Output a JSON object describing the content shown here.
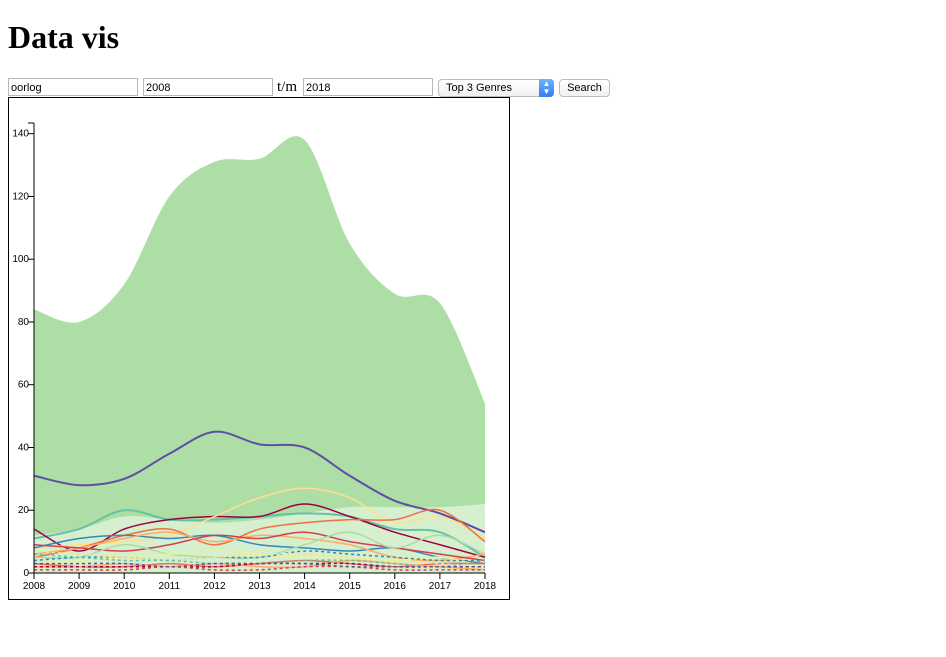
{
  "page": {
    "title": "Data vis"
  },
  "search": {
    "query": "oorlog",
    "year_from": "2008",
    "range_separator": "t/m",
    "year_to": "2018",
    "mode_selected": "Top 3 Genres",
    "button_label": "Search"
  },
  "colors": {
    "area_primary": "#addea6",
    "area_secondary": "#d5efcf",
    "purple_line": "#5e4fa2",
    "teal_line": "#66c2a5",
    "crimson_line": "#9e0142",
    "yellow_line": "#fee08b",
    "orange_line": "#f46d43",
    "red_line": "#d53e4f",
    "blue_line": "#3288bd",
    "light_orange_line": "#fdae61"
  },
  "chart_data": {
    "type": "area",
    "x": [
      "2008",
      "2009",
      "2010",
      "2011",
      "2012",
      "2013",
      "2014",
      "2015",
      "2016",
      "2017",
      "2018"
    ],
    "ylim": [
      0,
      145
    ],
    "yticks": [
      "0",
      "20",
      "40",
      "60",
      "80",
      "100",
      "120",
      "140"
    ],
    "grid": false,
    "series": [
      {
        "kind": "area",
        "color": "#addea6",
        "values": [
          84,
          80,
          92,
          120,
          131,
          132,
          138,
          105,
          89,
          86,
          54
        ]
      },
      {
        "kind": "area",
        "color": "#d5efcf",
        "values": [
          12,
          14,
          18,
          17,
          16,
          17,
          19,
          21,
          21,
          21,
          22
        ]
      },
      {
        "kind": "line",
        "color": "#5e4fa2",
        "values": [
          31,
          28,
          30,
          38,
          45,
          41,
          40,
          31,
          23,
          19,
          13
        ]
      },
      {
        "kind": "line",
        "color": "#66c2a5",
        "values": [
          11,
          14,
          20,
          17,
          17,
          18,
          19,
          18,
          14,
          13,
          5
        ]
      },
      {
        "kind": "line",
        "color": "#9e0142",
        "values": [
          14,
          7,
          14,
          17,
          18,
          18,
          22,
          18,
          13,
          9,
          5
        ]
      },
      {
        "kind": "line",
        "color": "#fee08b",
        "values": [
          8,
          9,
          10,
          12,
          18,
          24,
          27,
          24,
          16,
          18,
          11
        ]
      },
      {
        "kind": "line",
        "color": "#f46d43",
        "values": [
          5,
          8,
          12,
          14,
          9,
          14,
          16,
          17,
          17,
          20,
          10
        ]
      },
      {
        "kind": "line",
        "color": "#3288bd",
        "values": [
          8,
          11,
          12,
          11,
          12,
          9,
          8,
          7,
          8,
          5,
          3
        ]
      },
      {
        "kind": "line",
        "color": "#fdae61",
        "values": [
          6,
          8,
          11,
          13,
          10,
          12,
          11,
          9,
          5,
          4,
          6
        ]
      },
      {
        "kind": "line",
        "color": "#d53e4f",
        "values": [
          9,
          8,
          7,
          9,
          12,
          11,
          13,
          10,
          8,
          6,
          4
        ]
      },
      {
        "kind": "line",
        "color": "#abdda4",
        "values": [
          5,
          5,
          9,
          6,
          5,
          5,
          9,
          13,
          8,
          12,
          6
        ]
      },
      {
        "kind": "line",
        "color": "#e6f598",
        "values": [
          3,
          4,
          5,
          6,
          7,
          6,
          5,
          5,
          4,
          5,
          2
        ]
      },
      {
        "kind": "line",
        "color": "#f46d43",
        "values": [
          3,
          2,
          2,
          3,
          2,
          3,
          4,
          3,
          2,
          3,
          3
        ]
      },
      {
        "kind": "line",
        "color": "#fdae61",
        "values": [
          2,
          2,
          3,
          2,
          3,
          2,
          2,
          4,
          3,
          2,
          1
        ]
      },
      {
        "kind": "line",
        "color": "#3288bd",
        "values": [
          4,
          5,
          5,
          4,
          5,
          5,
          7,
          6,
          5,
          4,
          4
        ],
        "dashed": true
      },
      {
        "kind": "line",
        "color": "#fee08b",
        "values": [
          7,
          6,
          5,
          4,
          5,
          6,
          6,
          5,
          4,
          3,
          2
        ],
        "dashed": true
      },
      {
        "kind": "line",
        "color": "#66c2a5",
        "values": [
          6,
          5,
          4,
          4,
          3,
          3,
          4,
          4,
          3,
          2,
          4
        ],
        "dashed": true
      },
      {
        "kind": "line",
        "color": "#9e0142",
        "values": [
          2,
          2,
          2,
          2,
          2,
          3,
          3,
          3,
          2,
          2,
          2
        ],
        "dashed": true
      },
      {
        "kind": "line",
        "color": "#d53e4f",
        "values": [
          1,
          1,
          1,
          2,
          1,
          1,
          2,
          2,
          1,
          1,
          1
        ],
        "dashed": true
      },
      {
        "kind": "line",
        "color": "#5e4fa2",
        "values": [
          3,
          3,
          3,
          2,
          3,
          3,
          3,
          2,
          2,
          2,
          2
        ],
        "dashed": true
      }
    ]
  }
}
